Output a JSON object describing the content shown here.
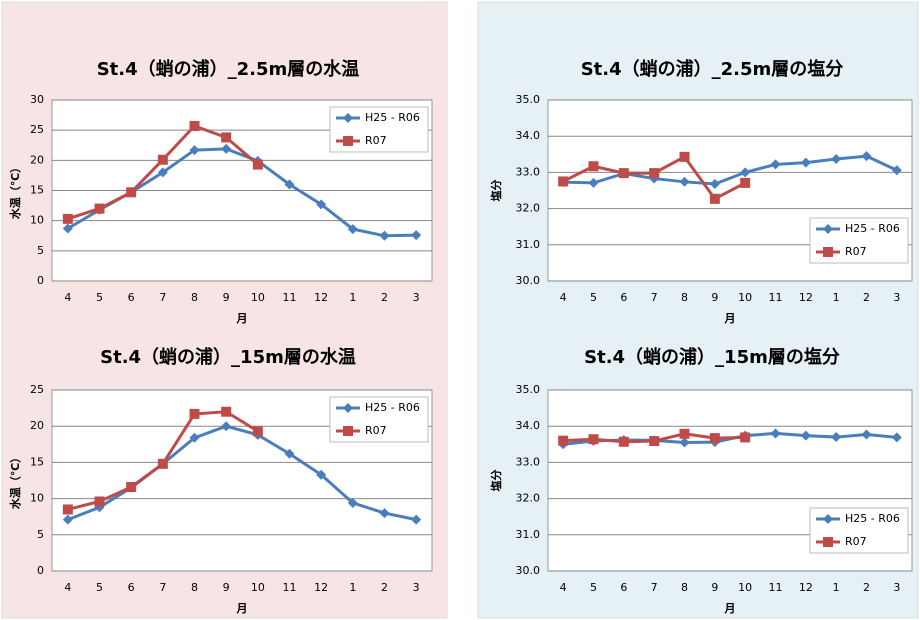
{
  "chart_data": [
    {
      "type": "line",
      "title": "St.4（蛸の浦）_2.5m層の水温",
      "x_label": "月",
      "y_label": "水温（℃）",
      "categories": [
        "4",
        "5",
        "6",
        "7",
        "8",
        "9",
        "10",
        "11",
        "12",
        "1",
        "2",
        "3"
      ],
      "ylim": [
        0,
        30
      ],
      "yticks": [
        0,
        5,
        10,
        15,
        20,
        25,
        30
      ],
      "grid": true,
      "legend": "upper right",
      "series": [
        {
          "name": "H25 - R06",
          "color": "#4a7ebb",
          "marker": "diamond",
          "values": [
            8.7,
            11.8,
            14.7,
            18.0,
            21.7,
            21.9,
            19.9,
            16.0,
            12.7,
            8.6,
            7.5,
            7.6
          ]
        },
        {
          "name": "R07",
          "color": "#be4b48",
          "marker": "square",
          "values": [
            10.3,
            12.0,
            14.7,
            20.1,
            25.7,
            23.8,
            19.3,
            null,
            null,
            null,
            null,
            null
          ]
        }
      ]
    },
    {
      "type": "line",
      "title": "St.4（蛸の浦）_15m層の水温",
      "x_label": "月",
      "y_label": "水温（℃）",
      "categories": [
        "4",
        "5",
        "6",
        "7",
        "8",
        "9",
        "10",
        "11",
        "12",
        "1",
        "2",
        "3"
      ],
      "ylim": [
        0,
        25
      ],
      "yticks": [
        0,
        5,
        10,
        15,
        20,
        25
      ],
      "grid": true,
      "legend": "upper right",
      "series": [
        {
          "name": "H25 - R06",
          "color": "#4a7ebb",
          "marker": "diamond",
          "values": [
            7.1,
            8.8,
            11.5,
            14.8,
            18.4,
            20.0,
            18.8,
            16.2,
            13.3,
            9.4,
            8.0,
            7.1
          ]
        },
        {
          "name": "R07",
          "color": "#be4b48",
          "marker": "square",
          "values": [
            8.5,
            9.6,
            11.6,
            14.8,
            21.7,
            22.0,
            19.3,
            null,
            null,
            null,
            null,
            null
          ]
        }
      ]
    },
    {
      "type": "line",
      "title": "St.4（蛸の浦）_2.5m層の塩分",
      "x_label": "月",
      "y_label": "塩分",
      "categories": [
        "4",
        "5",
        "6",
        "7",
        "8",
        "9",
        "10",
        "11",
        "12",
        "1",
        "2",
        "3"
      ],
      "ylim": [
        30,
        35
      ],
      "yticks": [
        {
          "value": 30,
          "label": "30.0"
        },
        {
          "value": 31,
          "label": "31.0"
        },
        {
          "value": 32,
          "label": "32.0"
        },
        {
          "value": 33,
          "label": "33.0"
        },
        {
          "value": 34,
          "label": "34.0"
        },
        {
          "value": 35,
          "label": "35.0"
        }
      ],
      "grid": true,
      "legend": "lower right",
      "series": [
        {
          "name": "H25 - R06",
          "color": "#4a7ebb",
          "marker": "diamond",
          "values": [
            32.73,
            32.71,
            32.97,
            32.83,
            32.74,
            32.68,
            33.0,
            33.22,
            33.27,
            33.37,
            33.45,
            33.06
          ]
        },
        {
          "name": "R07",
          "color": "#be4b48",
          "marker": "square",
          "values": [
            32.75,
            33.17,
            32.98,
            32.98,
            33.43,
            32.27,
            32.71,
            null,
            null,
            null,
            null,
            null
          ]
        }
      ]
    },
    {
      "type": "line",
      "title": "St.4（蛸の浦）_15m層の塩分",
      "x_label": "月",
      "y_label": "塩分",
      "categories": [
        "4",
        "5",
        "6",
        "7",
        "8",
        "9",
        "10",
        "11",
        "12",
        "1",
        "2",
        "3"
      ],
      "ylim": [
        30,
        35
      ],
      "yticks": [
        {
          "value": 30,
          "label": "30.0"
        },
        {
          "value": 31,
          "label": "31.0"
        },
        {
          "value": 32,
          "label": "32.0"
        },
        {
          "value": 33,
          "label": "33.0"
        },
        {
          "value": 34,
          "label": "34.0"
        },
        {
          "value": 35,
          "label": "35.0"
        }
      ],
      "grid": true,
      "legend": "lower right",
      "series": [
        {
          "name": "H25 - R06",
          "color": "#4a7ebb",
          "marker": "diamond",
          "values": [
            33.5,
            33.59,
            33.62,
            33.61,
            33.55,
            33.56,
            33.74,
            33.8,
            33.74,
            33.7,
            33.77,
            33.69
          ]
        },
        {
          "name": "R07",
          "color": "#be4b48",
          "marker": "square",
          "values": [
            33.6,
            33.64,
            33.57,
            33.59,
            33.79,
            33.67,
            33.69,
            null,
            null,
            null,
            null,
            null
          ]
        }
      ]
    }
  ]
}
